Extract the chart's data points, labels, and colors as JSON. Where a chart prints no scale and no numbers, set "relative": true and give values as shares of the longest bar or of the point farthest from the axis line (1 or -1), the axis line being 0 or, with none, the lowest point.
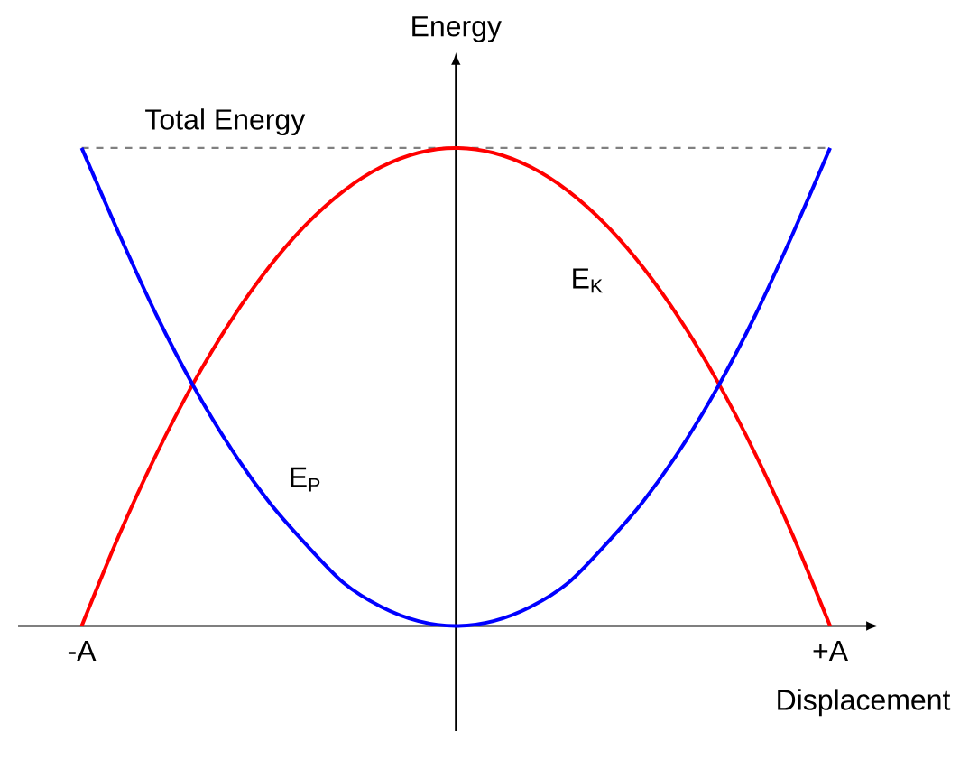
{
  "chart_data": {
    "type": "line",
    "relative": true,
    "xlabel": "Displacement",
    "ylabel": "Energy",
    "categories": [
      "-A",
      null,
      null,
      null,
      null,
      null,
      null,
      null,
      null,
      null,
      null,
      null,
      null,
      null,
      null,
      null,
      null,
      null,
      null,
      null,
      "+A"
    ],
    "series": [
      {
        "name": "E$_{K}$",
        "color": "#ff0000",
        "values": [
          0,
          0.19,
          0.36,
          0.51,
          0.64,
          0.75,
          0.84,
          0.91,
          0.96,
          0.99,
          1,
          0.99,
          0.96,
          0.91,
          0.84,
          0.75,
          0.64,
          0.51,
          0.36,
          0.19,
          0
        ]
      },
      {
        "name": "E$_{P}$",
        "color": "#0000ff",
        "values": [
          1,
          0.82,
          0.65,
          0.5,
          0.37,
          0.26,
          0.17,
          0.09,
          0.04,
          0.01,
          0,
          0.01,
          0.04,
          0.09,
          0.17,
          0.26,
          0.37,
          0.5,
          0.65,
          0.82,
          1
        ]
      }
    ],
    "ref_lines": [
      {
        "axis": "y",
        "value": 1,
        "label": "Total Energy",
        "color": "#808080",
        "line_style": "dashed"
      }
    ],
    "legend": false,
    "marker": "none",
    "line_style": "solid"
  }
}
